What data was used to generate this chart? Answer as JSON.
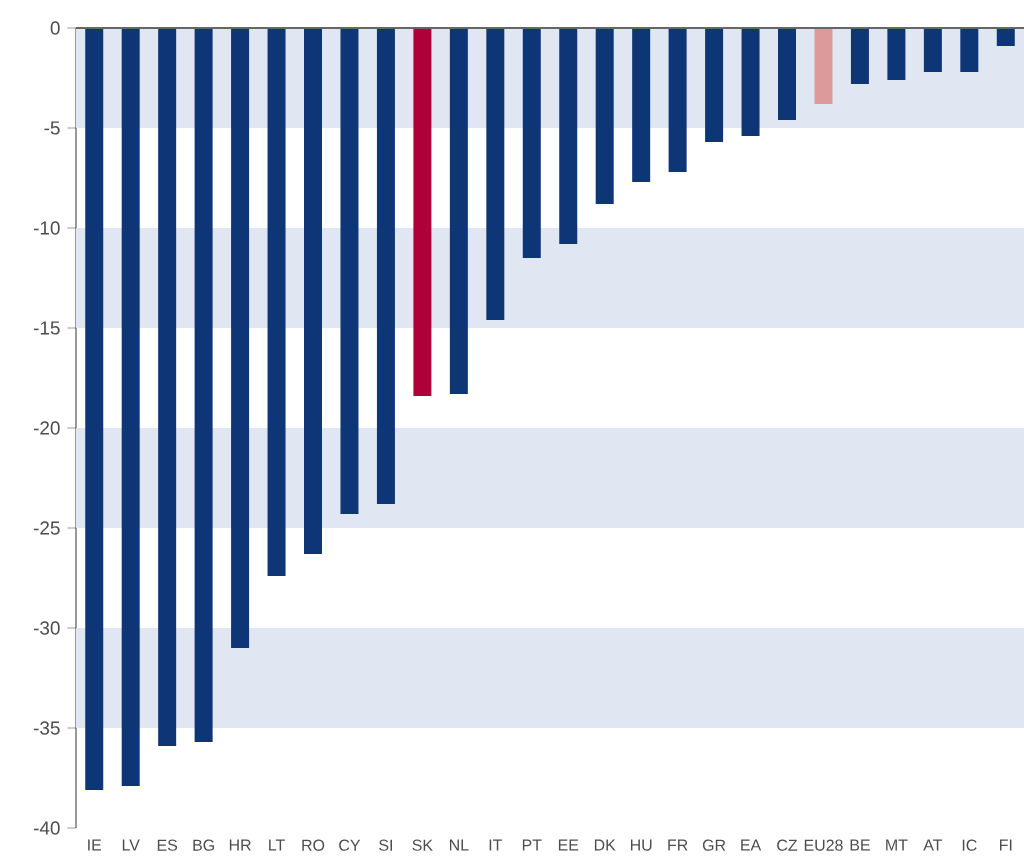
{
  "chart_data": {
    "type": "bar",
    "categories": [
      "IE",
      "LV",
      "ES",
      "BG",
      "HR",
      "LT",
      "RO",
      "CY",
      "SI",
      "SK",
      "NL",
      "IT",
      "PT",
      "EE",
      "DK",
      "HU",
      "FR",
      "GR",
      "EA",
      "CZ",
      "EU28",
      "BE",
      "MT",
      "AT",
      "IC",
      "FI"
    ],
    "values": [
      -38.1,
      -37.9,
      -35.9,
      -35.7,
      -31.0,
      -27.4,
      -26.3,
      -24.3,
      -23.8,
      -18.4,
      -18.3,
      -14.6,
      -11.5,
      -10.8,
      -8.8,
      -7.7,
      -7.2,
      -5.7,
      -5.4,
      -4.6,
      -3.8,
      -2.8,
      -2.6,
      -2.2,
      -2.2,
      -0.9
    ],
    "colors": [
      "#0e3677",
      "#0e3677",
      "#0e3677",
      "#0e3677",
      "#0e3677",
      "#0e3677",
      "#0e3677",
      "#0e3677",
      "#0e3677",
      "#b0003a",
      "#0e3677",
      "#0e3677",
      "#0e3677",
      "#0e3677",
      "#0e3677",
      "#0e3677",
      "#0e3677",
      "#0e3677",
      "#0e3677",
      "#0e3677",
      "#dc9a9a",
      "#0e3677",
      "#0e3677",
      "#0e3677",
      "#0e3677",
      "#0e3677"
    ],
    "ylim": [
      -40,
      0
    ],
    "yticks": [
      0,
      -5,
      -10,
      -15,
      -20,
      -25,
      -30,
      -35,
      -40
    ],
    "grid": false,
    "bands": [
      {
        "axis": "y",
        "from": 0,
        "to": -5,
        "color": "#e1e7f2"
      },
      {
        "axis": "y",
        "from": -10,
        "to": -15,
        "color": "#e1e7f2"
      },
      {
        "axis": "y",
        "from": -20,
        "to": -25,
        "color": "#e1e7f2"
      },
      {
        "axis": "y",
        "from": -30,
        "to": -35,
        "color": "#e1e7f2"
      }
    ]
  }
}
